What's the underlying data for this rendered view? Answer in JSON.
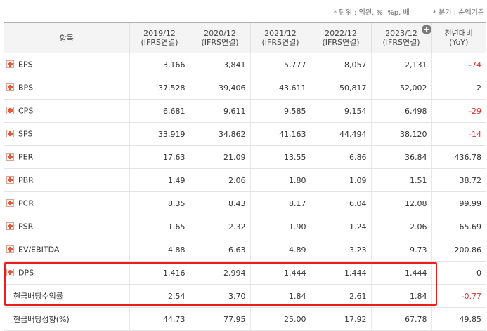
{
  "notes": {
    "unit": "* 단위 : 억원, %, %p, 배",
    "period": "* 분기 : 순액기준"
  },
  "header": {
    "item": "항목",
    "columns": [
      {
        "period": "2019/12",
        "basis": "(IFRS연결)"
      },
      {
        "period": "2020/12",
        "basis": "(IFRS연결)"
      },
      {
        "period": "2021/12",
        "basis": "(IFRS연결)"
      },
      {
        "period": "2022/12",
        "basis": "(IFRS연결)"
      },
      {
        "period": "2023/12",
        "basis": "(IFRS연결)"
      }
    ],
    "yoy": {
      "label": "전년대비",
      "sub": "(YoY)"
    }
  },
  "rows": [
    {
      "label": "EPS",
      "values": [
        "3,166",
        "3,841",
        "5,777",
        "8,057",
        "2,131"
      ],
      "yoy": "-74"
    },
    {
      "label": "BPS",
      "values": [
        "37,528",
        "39,406",
        "43,611",
        "50,817",
        "52,002"
      ],
      "yoy": "2"
    },
    {
      "label": "CPS",
      "values": [
        "6,681",
        "9,611",
        "9,585",
        "9,154",
        "6,498"
      ],
      "yoy": "-29"
    },
    {
      "label": "SPS",
      "values": [
        "33,919",
        "34,862",
        "41,163",
        "44,494",
        "38,120"
      ],
      "yoy": "-14"
    },
    {
      "label": "PER",
      "values": [
        "17.63",
        "21.09",
        "13.55",
        "6.86",
        "36.84"
      ],
      "yoy": "436.78"
    },
    {
      "label": "PBR",
      "values": [
        "1.49",
        "2.06",
        "1.80",
        "1.09",
        "1.51"
      ],
      "yoy": "38.72"
    },
    {
      "label": "PCR",
      "values": [
        "8.35",
        "8.43",
        "8.17",
        "6.04",
        "12.08"
      ],
      "yoy": "99.99"
    },
    {
      "label": "PSR",
      "values": [
        "1.65",
        "2.32",
        "1.90",
        "1.24",
        "2.06"
      ],
      "yoy": "65.69"
    },
    {
      "label": "EV/EBITDA",
      "values": [
        "4.88",
        "6.63",
        "4.89",
        "3.23",
        "9.73"
      ],
      "yoy": "200.86"
    },
    {
      "label": "DPS",
      "values": [
        "1,416",
        "2,994",
        "1,444",
        "1,444",
        "1,444"
      ],
      "yoy": "0"
    },
    {
      "label": "현금배당수익률",
      "values": [
        "2.54",
        "3.70",
        "1.84",
        "2.61",
        "1.84"
      ],
      "yoy": "-0.77"
    },
    {
      "label": "현금배당성향(%)",
      "values": [
        "44.73",
        "77.95",
        "25.00",
        "17.92",
        "67.78"
      ],
      "yoy": "49.85"
    }
  ],
  "colors": {
    "negative": "#e0302a",
    "highlight": "#ee1c1c"
  }
}
